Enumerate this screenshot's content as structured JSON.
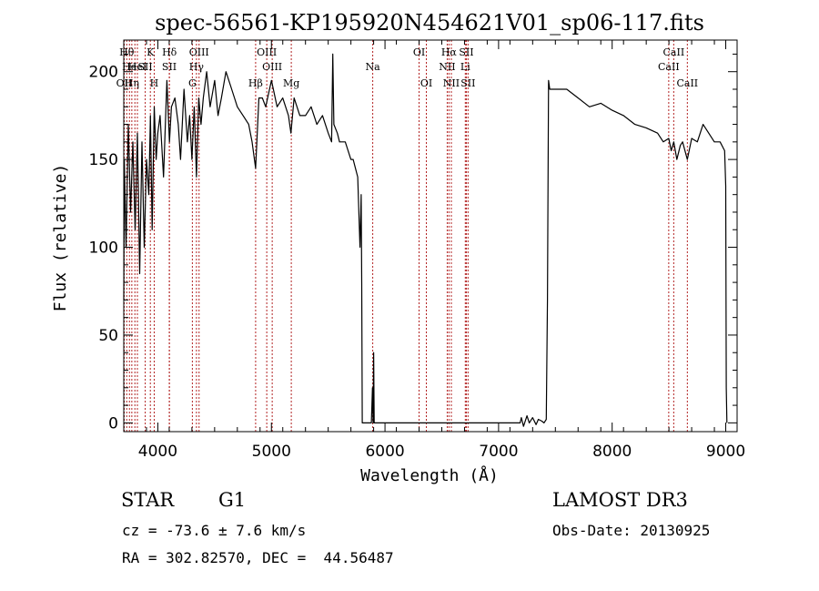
{
  "chart_data": {
    "type": "line",
    "title": "spec-56561-KP195920N454621V01_sp06-117.fits",
    "xlabel": "Wavelength (Å)",
    "ylabel": "Flux (relative)",
    "xlim": [
      3700,
      9100
    ],
    "ylim": [
      -5,
      218
    ],
    "x_ticks": [
      4000,
      5000,
      6000,
      7000,
      8000,
      9000
    ],
    "x_tick_labels": [
      "4000",
      "5000",
      "6000",
      "7000",
      "8000",
      "9000"
    ],
    "y_ticks": [
      0,
      50,
      100,
      150,
      200
    ],
    "y_tick_labels": [
      "0",
      "50",
      "100",
      "150",
      "200"
    ],
    "grid": false,
    "line_color": "#000000",
    "marker_color": "#b22222",
    "series": [
      {
        "name": "flux",
        "x": [
          3700,
          3705,
          3720,
          3740,
          3760,
          3780,
          3800,
          3820,
          3840,
          3860,
          3880,
          3900,
          3920,
          3935,
          3950,
          3968,
          3985,
          4000,
          4020,
          4050,
          4080,
          4102,
          4120,
          4150,
          4180,
          4200,
          4230,
          4260,
          4280,
          4300,
          4320,
          4340,
          4360,
          4380,
          4400,
          4430,
          4460,
          4500,
          4530,
          4560,
          4600,
          4650,
          4700,
          4750,
          4800,
          4830,
          4861,
          4890,
          4920,
          4950,
          5000,
          5050,
          5100,
          5150,
          5172,
          5200,
          5250,
          5300,
          5350,
          5400,
          5450,
          5500,
          5530,
          5540,
          5550,
          5580,
          5600,
          5650,
          5700,
          5720,
          5740,
          5760,
          5780,
          5790,
          5795,
          5800,
          5850,
          5880,
          5890,
          5895,
          5900,
          5905,
          6000,
          6500,
          7000,
          7100,
          7190,
          7200,
          7220,
          7250,
          7270,
          7300,
          7330,
          7350,
          7380,
          7400,
          7420,
          7430,
          7440,
          7450,
          7500,
          7600,
          7700,
          7800,
          7900,
          8000,
          8100,
          8200,
          8300,
          8400,
          8450,
          8498,
          8520,
          8542,
          8570,
          8600,
          8620,
          8662,
          8700,
          8750,
          8800,
          8850,
          8900,
          8950,
          8990,
          9000,
          9005,
          9010
        ],
        "y": [
          70,
          150,
          100,
          170,
          120,
          160,
          110,
          165,
          85,
          160,
          100,
          150,
          130,
          175,
          110,
          180,
          150,
          165,
          175,
          140,
          195,
          160,
          180,
          185,
          170,
          150,
          190,
          160,
          175,
          150,
          180,
          140,
          185,
          170,
          185,
          200,
          180,
          195,
          175,
          185,
          200,
          190,
          180,
          175,
          170,
          160,
          145,
          185,
          185,
          180,
          195,
          180,
          185,
          175,
          165,
          185,
          175,
          175,
          180,
          170,
          175,
          165,
          160,
          210,
          170,
          165,
          160,
          160,
          150,
          150,
          145,
          140,
          100,
          130,
          80,
          0,
          0,
          0,
          20,
          0,
          40,
          0,
          0,
          0,
          0,
          0,
          0,
          3,
          -2,
          4,
          0,
          3,
          -1,
          2,
          1,
          0,
          2,
          70,
          195,
          190,
          190,
          190,
          185,
          180,
          182,
          178,
          175,
          170,
          168,
          165,
          160,
          162,
          155,
          160,
          150,
          158,
          160,
          150,
          162,
          160,
          170,
          165,
          160,
          160,
          155,
          135,
          20,
          0
        ]
      }
    ],
    "line_markers": [
      {
        "wavelength": 3704,
        "label": "OII",
        "row": 3
      },
      {
        "wavelength": 3726,
        "label": "Hθ",
        "row": 1
      },
      {
        "wavelength": 3750,
        "label": "He",
        "row": 2
      },
      {
        "wavelength": 3771,
        "label": "Hη",
        "row": 3
      },
      {
        "wavelength": 3798,
        "label": "",
        "row": 0
      },
      {
        "wavelength": 3820,
        "label": "HeI",
        "row": 2
      },
      {
        "wavelength": 3889,
        "label": "SII",
        "row": 2
      },
      {
        "wavelength": 3934,
        "label": "K",
        "row": 1
      },
      {
        "wavelength": 3968,
        "label": "H",
        "row": 3
      },
      {
        "wavelength": 4102,
        "label": "Hδ",
        "row": 1
      },
      {
        "wavelength": 4101,
        "label": "SII",
        "row": 2
      },
      {
        "wavelength": 4304,
        "label": "G",
        "row": 3
      },
      {
        "wavelength": 4340,
        "label": "Hγ",
        "row": 2
      },
      {
        "wavelength": 4363,
        "label": "OIII",
        "row": 1
      },
      {
        "wavelength": 4861,
        "label": "Hβ",
        "row": 3
      },
      {
        "wavelength": 4959,
        "label": "OIII",
        "row": 1
      },
      {
        "wavelength": 5007,
        "label": "OIII",
        "row": 2
      },
      {
        "wavelength": 5175,
        "label": "Mg",
        "row": 3
      },
      {
        "wavelength": 5892,
        "label": "Na",
        "row": 2
      },
      {
        "wavelength": 6300,
        "label": "OI",
        "row": 1
      },
      {
        "wavelength": 6364,
        "label": "OI",
        "row": 3
      },
      {
        "wavelength": 6548,
        "label": "NII",
        "row": 2
      },
      {
        "wavelength": 6563,
        "label": "Hα",
        "row": 1
      },
      {
        "wavelength": 6584,
        "label": "NII",
        "row": 3
      },
      {
        "wavelength": 6707,
        "label": "Li",
        "row": 2
      },
      {
        "wavelength": 6716,
        "label": "SII",
        "row": 1
      },
      {
        "wavelength": 6731,
        "label": "SII",
        "row": 3
      },
      {
        "wavelength": 8498,
        "label": "CaII",
        "row": 2
      },
      {
        "wavelength": 8542,
        "label": "CaII",
        "row": 1
      },
      {
        "wavelength": 8662,
        "label": "CaII",
        "row": 3
      }
    ]
  },
  "info": {
    "object_class": "STAR",
    "subclass": "G1",
    "redshift_text": "cz = -73.6 ± 7.6 km/s",
    "coordinates_text": "RA = 302.82570, DEC =  44.56487",
    "survey": "LAMOST DR3",
    "obs_date_text": "Obs-Date: 20130925"
  }
}
